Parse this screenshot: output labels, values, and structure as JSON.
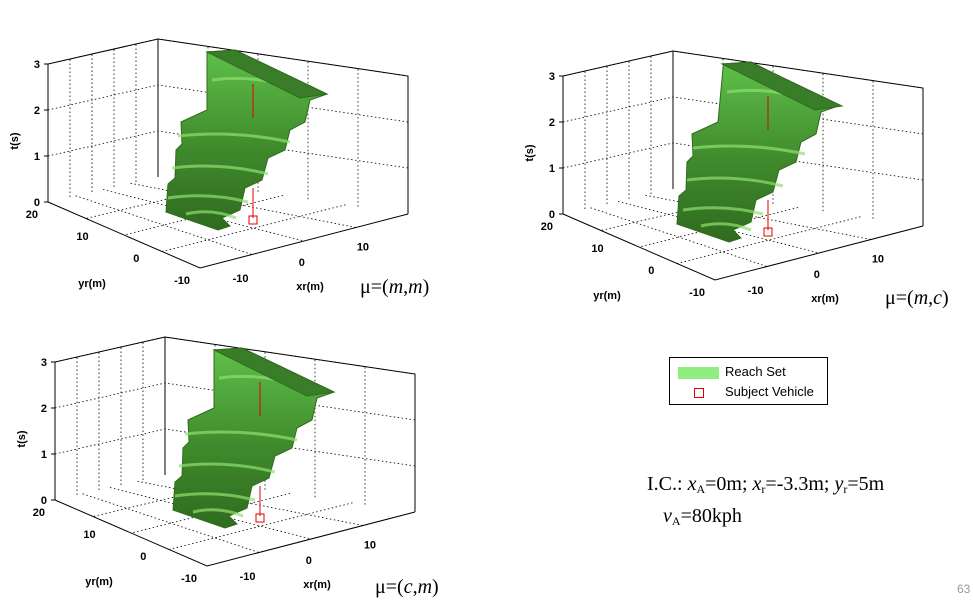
{
  "chart_data": [
    {
      "type": "surface3d",
      "zlabel": "t(s)",
      "xlabel": "xr(m)",
      "ylabel": "yr(m)",
      "zticks": [
        "0",
        "1",
        "2",
        "3"
      ],
      "xticks": [
        "-10",
        "0",
        "10"
      ],
      "yticks": [
        "20",
        "10",
        "0",
        "-10"
      ],
      "zlim": [
        0,
        3
      ],
      "xlim": [
        -15,
        15
      ],
      "ylim": [
        -10,
        20
      ],
      "grid": true,
      "caption": {
        "mu": "μ",
        "eq": "=(",
        "a": "m",
        "comma": ",",
        "b": "m",
        "close": ")"
      }
    },
    {
      "type": "surface3d",
      "zlabel": "t(s)",
      "xlabel": "xr(m)",
      "ylabel": "yr(m)",
      "zticks": [
        "0",
        "1",
        "2",
        "3"
      ],
      "xticks": [
        "-10",
        "0",
        "10"
      ],
      "yticks": [
        "20",
        "10",
        "0",
        "-10"
      ],
      "zlim": [
        0,
        3
      ],
      "xlim": [
        -15,
        15
      ],
      "ylim": [
        -10,
        20
      ],
      "grid": true,
      "caption": {
        "mu": "μ",
        "eq": "=(",
        "a": "m",
        "comma": ",",
        "b": "c",
        "close": ")"
      }
    },
    {
      "type": "surface3d",
      "zlabel": "t(s)",
      "xlabel": "xr(m)",
      "ylabel": "yr(m)",
      "zticks": [
        "0",
        "1",
        "2",
        "3"
      ],
      "xticks": [
        "-10",
        "0",
        "10"
      ],
      "yticks": [
        "20",
        "10",
        "0",
        "-10"
      ],
      "zlim": [
        0,
        3
      ],
      "xlim": [
        -15,
        15
      ],
      "ylim": [
        -10,
        20
      ],
      "grid": true,
      "caption": {
        "mu": "μ",
        "eq": "=(",
        "a": "c",
        "comma": ",",
        "b": "m",
        "close": ")"
      }
    }
  ],
  "legend": {
    "items": [
      {
        "label": "Reach Set",
        "color": "#90ee80"
      },
      {
        "label": "Subject Vehicle",
        "color": "#e00000"
      }
    ]
  },
  "initial_conditions": {
    "prefix": "I.C.: ",
    "xa_sym": "x",
    "xa_sub": "A",
    "xa_val": "=0m; ",
    "xr_sym": "x",
    "xr_sub": "r",
    "xr_val": "=-3.3m; ",
    "yr_sym": "y",
    "yr_sub": "r",
    "yr_val": "=5m",
    "va_sym": "v",
    "va_sub": "A",
    "va_val": "=80kph"
  },
  "page_number": "63",
  "colors": {
    "surface_dark": "#2f6b1f",
    "surface_light": "#5fc04a",
    "vehicle": "#e00000"
  }
}
